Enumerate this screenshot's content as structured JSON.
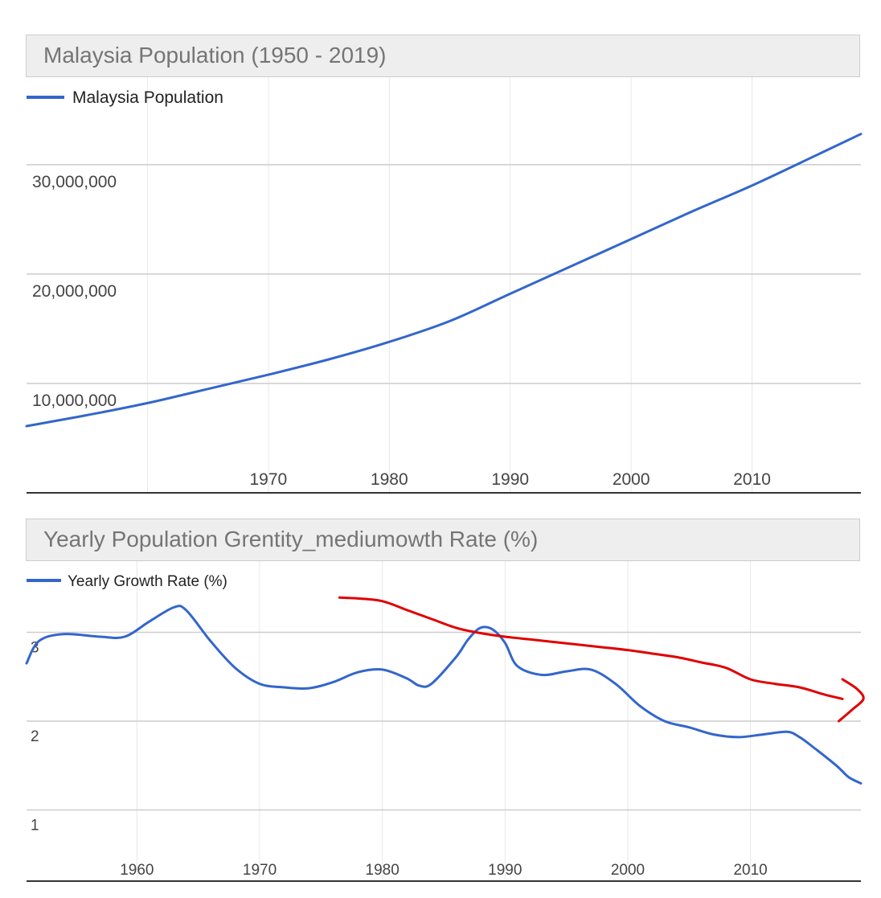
{
  "colors": {
    "series": "#3366cc",
    "annotation": "#e00000",
    "grid": "#cccccc",
    "vgrid": "#e8e8e8",
    "axis": "#333333"
  },
  "chart_data": [
    {
      "type": "line",
      "title": "Malaysia Population (1950 - 2019)",
      "legend": "top-left",
      "grid": true,
      "xlim": [
        1950,
        2019
      ],
      "ylim": [
        0,
        38000000
      ],
      "x_ticks": [
        1970,
        1980,
        1990,
        2000,
        2010
      ],
      "y_ticks": [
        10000000,
        20000000,
        30000000
      ],
      "y_tick_labels": [
        "10,000,000",
        "20,000,000",
        "30,000,000"
      ],
      "series": [
        {
          "name": "Malaysia Population",
          "x": [
            1950,
            1955,
            1960,
            1965,
            1970,
            1975,
            1980,
            1985,
            1990,
            1995,
            2000,
            2005,
            2010,
            2015,
            2019
          ],
          "y": [
            6100000,
            7100000,
            8200000,
            9500000,
            10800000,
            12200000,
            13800000,
            15700000,
            18200000,
            20700000,
            23200000,
            25700000,
            28100000,
            30700000,
            32800000
          ]
        }
      ]
    },
    {
      "type": "line",
      "title": "Yearly Population Grentity_mediumowth Rate (%)",
      "legend": "top-left",
      "grid": true,
      "xlim": [
        1951,
        2019
      ],
      "ylim": [
        0.2,
        3.8
      ],
      "x_ticks": [
        1960,
        1970,
        1980,
        1990,
        2000,
        2010
      ],
      "y_ticks": [
        1,
        2,
        3
      ],
      "y_tick_labels": [
        "1",
        "2",
        "3"
      ],
      "series": [
        {
          "name": "Yearly Growth Rate (%)",
          "x": [
            1951,
            1952,
            1954,
            1957,
            1959,
            1961,
            1963,
            1964,
            1966,
            1968,
            1970,
            1972,
            1974,
            1976,
            1978,
            1980,
            1982,
            1983,
            1984,
            1986,
            1987,
            1988,
            1989,
            1990,
            1991,
            1993,
            1995,
            1997,
            1999,
            2001,
            2003,
            2005,
            2007,
            2009,
            2011,
            2013,
            2014,
            2015,
            2017,
            2018,
            2019
          ],
          "y": [
            2.65,
            2.9,
            2.98,
            2.95,
            2.95,
            3.12,
            3.28,
            3.25,
            2.9,
            2.6,
            2.42,
            2.38,
            2.37,
            2.44,
            2.55,
            2.58,
            2.48,
            2.4,
            2.42,
            2.72,
            2.92,
            3.05,
            3.03,
            2.88,
            2.62,
            2.52,
            2.56,
            2.58,
            2.42,
            2.17,
            2.0,
            1.93,
            1.85,
            1.82,
            1.85,
            1.88,
            1.82,
            1.72,
            1.5,
            1.37,
            1.3
          ]
        }
      ],
      "annotation_stroke": {
        "x": [
          1976.5,
          1978,
          1980,
          1982,
          1984,
          1986,
          1988,
          1990,
          1992,
          1994,
          1996,
          1998,
          2000,
          2002,
          2004,
          2006,
          2008,
          2010,
          2012,
          2014,
          2016,
          2017.5
        ],
        "y": [
          3.39,
          3.38,
          3.35,
          3.25,
          3.15,
          3.05,
          2.99,
          2.95,
          2.92,
          2.89,
          2.86,
          2.83,
          2.8,
          2.76,
          2.72,
          2.66,
          2.6,
          2.47,
          2.42,
          2.38,
          2.3,
          2.25
        ]
      },
      "annotation_arrowhead": {
        "x": [
          2017.5,
          2018.7,
          2019.2,
          2018.3,
          2017.2
        ],
        "y": [
          2.47,
          2.36,
          2.25,
          2.13,
          2.0
        ]
      }
    }
  ]
}
